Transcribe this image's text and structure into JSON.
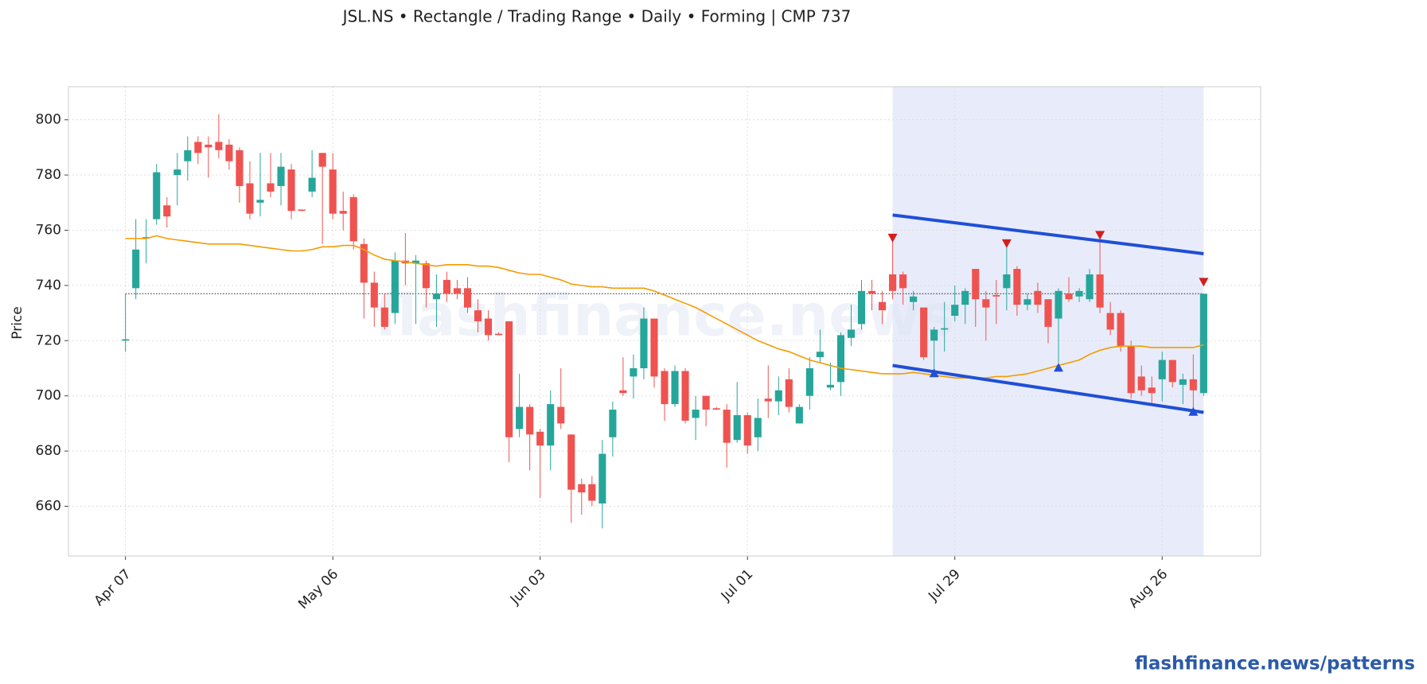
{
  "chart_data": {
    "type": "candlestick",
    "title": "JSL.NS  •  Rectangle / Trading Range  •  Daily  •  Forming  |  CMP 737",
    "y_label": "Price",
    "watermark": "flashfinance.news",
    "footer": "flashfinance.news/patterns",
    "xlim": [
      -5.5,
      109.5
    ],
    "xticks": [
      {
        "value": 0,
        "label": "Apr 07"
      },
      {
        "value": 20,
        "label": "May 06"
      },
      {
        "value": 40,
        "label": "Jun 03"
      },
      {
        "value": 60,
        "label": "Jul 01"
      },
      {
        "value": 80,
        "label": "Jul 29"
      },
      {
        "value": 100,
        "label": "Aug 26"
      }
    ],
    "ylim": [
      642,
      812
    ],
    "yticks": [
      660,
      680,
      700,
      720,
      740,
      760,
      780,
      800
    ],
    "grid": true,
    "up_color": "#26a69a",
    "down_color": "#ef5350",
    "open": [
      720,
      739,
      757,
      764,
      769,
      780,
      785,
      792,
      791,
      792,
      791,
      789,
      777,
      770,
      777,
      776,
      782,
      767.5,
      774,
      788,
      782,
      767,
      772,
      755,
      741,
      732,
      730,
      749,
      748,
      748,
      735,
      742,
      739,
      739,
      731,
      728,
      722.5,
      727,
      688,
      696,
      687,
      682,
      696,
      686,
      668,
      668,
      661,
      685,
      702,
      707,
      710,
      728,
      709,
      697,
      709,
      692,
      700,
      695.5,
      695,
      684,
      693,
      685,
      699,
      698,
      706,
      690,
      700,
      714,
      703,
      705,
      721,
      726,
      738,
      734,
      744,
      744,
      734,
      732,
      720,
      724,
      729,
      733,
      746,
      735,
      736.5,
      739,
      746,
      733,
      738,
      735,
      728,
      737,
      736,
      735,
      744,
      730,
      730,
      718,
      707,
      703,
      706,
      713,
      704,
      706,
      701
    ],
    "high": [
      737,
      764,
      764,
      784,
      772,
      788,
      794,
      794,
      794,
      802,
      793,
      790,
      785,
      788,
      788,
      788,
      784,
      767.5,
      789,
      788,
      788,
      774,
      773,
      757,
      745,
      737,
      752,
      759,
      751,
      749,
      744,
      745,
      742,
      743,
      735,
      731,
      723,
      727,
      708,
      697,
      688,
      702,
      710,
      686,
      670,
      671,
      684,
      698,
      714,
      715,
      732,
      728,
      710,
      711,
      710,
      700,
      700,
      696,
      697,
      705,
      694,
      699,
      711,
      707,
      710,
      697,
      714,
      724,
      712,
      723,
      733,
      742,
      742,
      738,
      757,
      745,
      738,
      732,
      725,
      734,
      740,
      739,
      746,
      738,
      742,
      754,
      747,
      737,
      741,
      735,
      739,
      743,
      739,
      746,
      758,
      734,
      731,
      720,
      711,
      707,
      716,
      713,
      708,
      715,
      737
    ],
    "low": [
      716,
      735,
      748,
      762,
      761,
      769,
      778,
      784,
      779,
      786,
      782,
      770,
      764,
      765,
      772,
      769,
      764,
      767,
      772,
      755,
      764,
      760,
      753,
      728,
      725,
      724,
      726,
      740,
      726,
      732,
      725,
      734,
      735,
      730,
      723,
      720,
      722,
      676,
      685,
      673,
      663,
      673,
      688,
      654,
      657,
      660,
      652,
      678,
      700,
      699,
      706,
      703,
      691,
      696,
      690,
      684,
      689,
      695,
      674,
      683,
      679,
      680,
      692,
      693,
      694,
      690,
      695,
      712,
      702,
      700,
      718,
      724,
      731,
      726,
      735,
      733,
      731,
      713,
      708,
      716,
      727,
      726,
      725,
      720,
      726,
      731,
      729,
      731,
      730,
      719,
      712,
      734,
      734,
      734,
      730,
      722,
      716,
      699,
      700,
      697,
      698,
      703,
      697,
      694,
      700
    ],
    "close": [
      720.5,
      753,
      757.5,
      781,
      765,
      782,
      789,
      788,
      790,
      789,
      785,
      776,
      766,
      771,
      774,
      783,
      767,
      767,
      779,
      783,
      766,
      766,
      756,
      741,
      732,
      725,
      749,
      748,
      749,
      739,
      737,
      737,
      737,
      732,
      727,
      722,
      722,
      685,
      696,
      686,
      682,
      697,
      690,
      666,
      665,
      662,
      679,
      695,
      701,
      710,
      728,
      707,
      697,
      709,
      691,
      695,
      695,
      695,
      683,
      693,
      682,
      692,
      698,
      702,
      696,
      696,
      710,
      716,
      704,
      722,
      724,
      738,
      737,
      731,
      738,
      739,
      736,
      714,
      724,
      724.5,
      733,
      738,
      735,
      732,
      736,
      744,
      733,
      735,
      733,
      725,
      738,
      735,
      738,
      744,
      732,
      724,
      718,
      701,
      702,
      701,
      713,
      705,
      706,
      702,
      737
    ],
    "ma": {
      "color": "#f59b00",
      "values": [
        757,
        757,
        757,
        758,
        757,
        756.5,
        756,
        755.5,
        755,
        755,
        755,
        755,
        754.5,
        754,
        753.5,
        753,
        752.5,
        752.5,
        753,
        754,
        754,
        754.5,
        754.5,
        753,
        751,
        749.5,
        749,
        748.5,
        748,
        747.5,
        747,
        747.5,
        747.5,
        747.5,
        747,
        747,
        746.5,
        745.5,
        744.5,
        744,
        744,
        743,
        742,
        740.5,
        740,
        739.5,
        739.5,
        739,
        739,
        739,
        739,
        738,
        736.5,
        735,
        733.5,
        732,
        730,
        728,
        726,
        724,
        722,
        720,
        718.5,
        717,
        716,
        714.5,
        713,
        712,
        711,
        710,
        709.5,
        709,
        708.5,
        708,
        708,
        708,
        708.5,
        708,
        707.5,
        707,
        706.5,
        706.5,
        706.5,
        706.5,
        707,
        707,
        707.5,
        708,
        709,
        710,
        711,
        712,
        713,
        715,
        716.5,
        717.5,
        718,
        718,
        718,
        717.5,
        717.5,
        717.5,
        717.5,
        717.5,
        718.5
      ]
    },
    "cmp_line": {
      "value": 737,
      "color": "#333333"
    },
    "highlight_x": [
      74,
      104
    ],
    "highlight_color": "#e8ecfa",
    "trendlines": [
      {
        "color": "#1f4fd6",
        "x": [
          74,
          104
        ],
        "values": [
          765.5,
          751.5
        ]
      },
      {
        "color": "#1f4fd6",
        "x": [
          74,
          104
        ],
        "values": [
          711,
          694
        ]
      }
    ],
    "peaks": {
      "color": "#d11f1f",
      "x": [
        74,
        85,
        94,
        104
      ],
      "values": [
        757,
        755,
        758,
        741
      ]
    },
    "troughs": {
      "color": "#1f4fd6",
      "x": [
        78,
        90,
        103
      ],
      "values": [
        708.5,
        710.5,
        694.5
      ]
    }
  }
}
